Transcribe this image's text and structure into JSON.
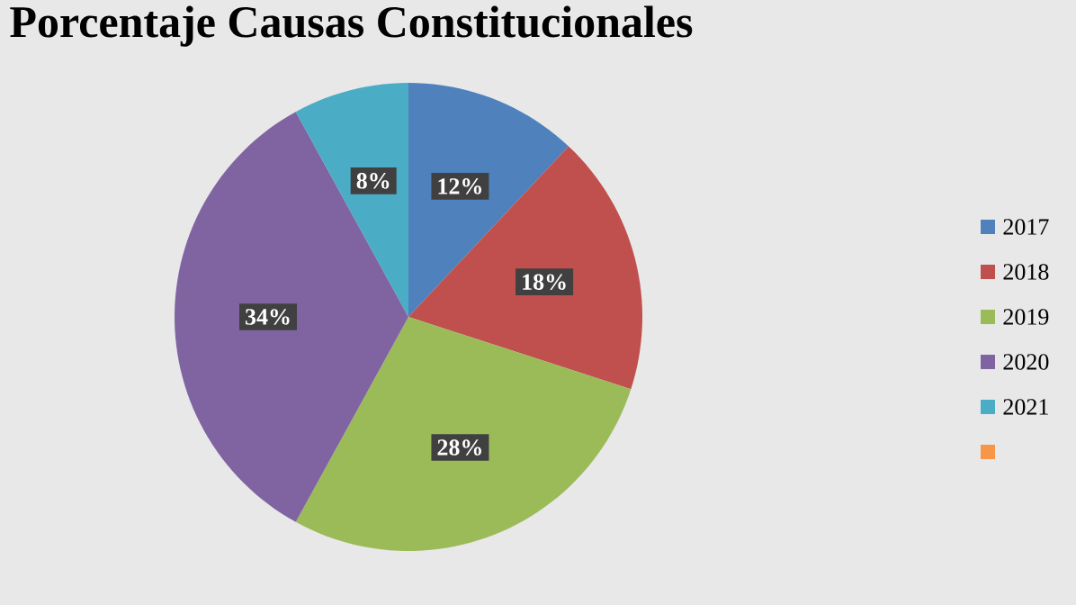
{
  "chart_data": {
    "type": "pie",
    "title": "Porcentaje Causas Constitucionales",
    "categories": [
      "2017",
      "2018",
      "2019",
      "2020",
      "2021",
      null
    ],
    "values": [
      12,
      18,
      28,
      34,
      8,
      0
    ],
    "value_labels": [
      "12%",
      "18%",
      "28%",
      "34%",
      "8%",
      null
    ],
    "colors": [
      "#4f81bd",
      "#c0504d",
      "#9bbb59",
      "#8064a2",
      "#4bacc6",
      "#f79646"
    ],
    "legend": "right"
  }
}
